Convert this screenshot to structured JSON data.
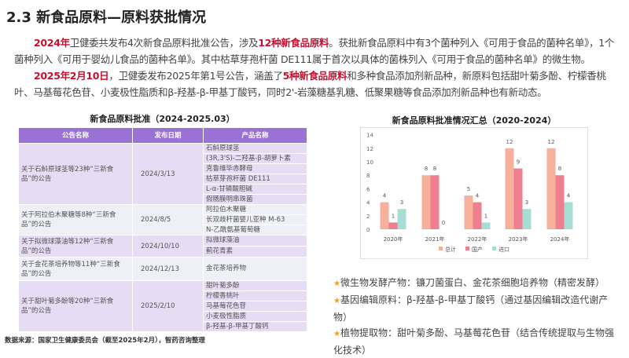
{
  "title": "2.3 新食品原料—原料获批情况",
  "para1": {
    "h1": "2024年",
    "t1": "卫健委共发布4次新食品原料批准公告，涉及",
    "h2": "12种新食品原料",
    "t2": "。获批新食品原料中有3个菌种列入《可用于食品的菌种名单》，1个菌种列入《可用于婴幼儿食品的菌种名单》。其中枯草芽孢杆菌 DE111属于首次以具体的菌株列入《可用于食品的菌种名单》的微生物。"
  },
  "para2": {
    "h1": "2025年2月10日",
    "t1": "，卫健委发布2025年第1号公告，涵盖了",
    "h2": "5种新食品原料",
    "t2": "和多种食品添加剂新品种，新原料包括甜叶菊多酚、柠檬香桃叶、马基莓花色苷、小麦极性脂质和β-羟基-β-甲基丁酸钙，同时2'-岩藻糖基乳糖、低聚果糖等食品添加剂新品种也有新动态。"
  },
  "table": {
    "title": "新食品原料批准（2024-2025.03）",
    "headers": [
      "公告名称",
      "发布日期",
      "产品名称"
    ],
    "rows": [
      {
        "name": "关于石斛原球茎等23种“三新食品”的公告",
        "date": "2024/3/13",
        "products": [
          "石斛原球茎",
          "(3R,3'S)-二羟基-β-胡萝卜素",
          "克鲁维毕赤酵母",
          "枯草芽孢杆菌 DE111",
          "L-α-甘磷酸胆碱",
          "假肠膜明串珠菌"
        ]
      },
      {
        "name": "关于阿拉伯木聚糖等8种“三新食品”的公告",
        "date": "2024/8/5",
        "products": [
          "阿拉伯木聚糖",
          "长双歧杆菌婴儿亚种 M-63",
          "N-乙酰氨基葡萄糖"
        ]
      },
      {
        "name": "关于拟微球藻油等12种“三新食品”的公告",
        "date": "2024/10/10",
        "products": [
          "拟微球藻油",
          "蓟花青素"
        ]
      },
      {
        "name": "关于金花茶培养物等11种“三新食品”的公告",
        "date": "2024/12/13",
        "products": [
          "金花茶培养物"
        ]
      },
      {
        "name": "关于甜叶菊多酚等20种“三新食品”的公告",
        "date": "2025/2/10",
        "products": [
          "甜叶菊多酚",
          "柠檬香桃叶",
          "马基莓花色苷",
          "小麦极性脂质",
          "β-羟基-β-甲基丁酸钙"
        ]
      }
    ]
  },
  "source": "数据来源：国家卫生健康委员会（截至2025年2月），智药咨询整理",
  "chart_data": {
    "type": "bar",
    "title": "新食品原料批准情况汇总（2020-2024）",
    "categories": [
      "2020年",
      "2021年",
      "2022年",
      "2023年",
      "2024年"
    ],
    "series": [
      {
        "name": "总计",
        "values": [
          4,
          8,
          5,
          12,
          12
        ],
        "color": "#f6b09c"
      },
      {
        "name": "国产",
        "values": [
          1,
          8,
          4,
          9,
          8
        ],
        "color": "#ee7f8e"
      },
      {
        "name": "进口",
        "values": [
          3,
          0,
          1,
          3,
          4
        ],
        "color": "#a8ddd6"
      }
    ],
    "ylim": [
      0,
      14
    ],
    "yticks": [
      "0",
      "2",
      "4",
      "6",
      "8",
      "10",
      "12",
      "14"
    ],
    "legend": "bottom",
    "grid": false
  },
  "bullets": [
    "微生物发酵产物：镰刀菌蛋白、金花茶细胞培养物（精密发酵）",
    "基因编辑原料：β-羟基-β-甲基丁酸钙（通过基因编辑改造代谢产物）",
    "植物提取物：甜叶菊多酚、马基莓花色苷（结合传统提取与生物强化技术）"
  ]
}
